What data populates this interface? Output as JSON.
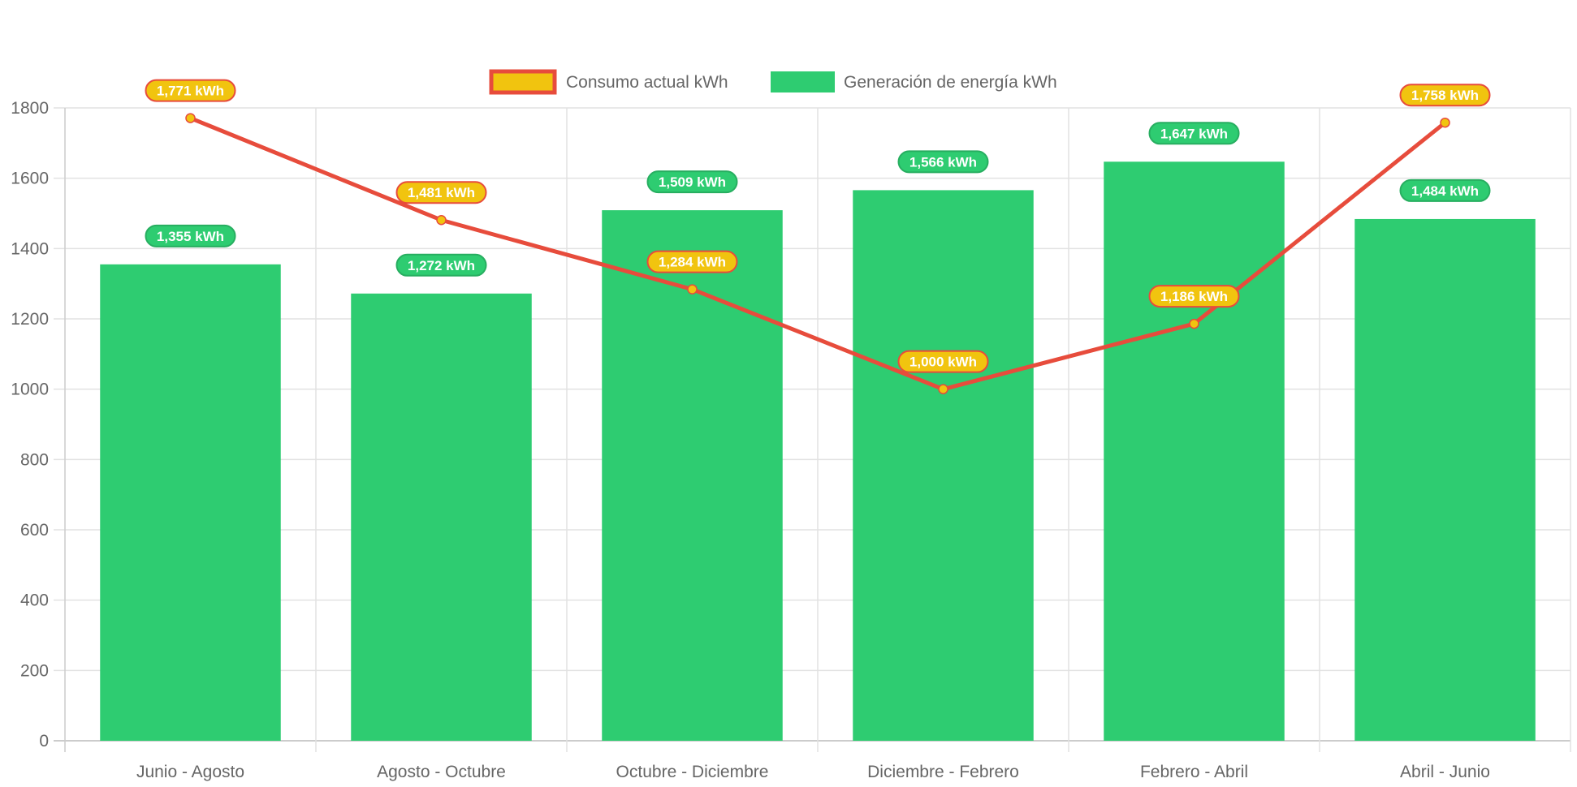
{
  "chart_data": {
    "type": "bar",
    "title": "",
    "xlabel": "",
    "ylabel": "",
    "ylim": [
      0,
      1800
    ],
    "y_ticks": [
      0,
      200,
      400,
      600,
      800,
      1000,
      1200,
      1400,
      1600,
      1800
    ],
    "grid": true,
    "legend_position": "top-center",
    "categories": [
      "Junio - Agosto",
      "Agosto - Octubre",
      "Octubre - Diciembre",
      "Diciembre - Febrero",
      "Febrero - Abril",
      "Abril - Junio"
    ],
    "series": [
      {
        "name": "Consumo actual kWh",
        "type": "line",
        "color": "#E74C3C",
        "point_color": "#F1C40F",
        "values": [
          1771,
          1481,
          1284,
          1000,
          1186,
          1758
        ],
        "labels": [
          "1,771 kWh",
          "1,481 kWh",
          "1,284 kWh",
          "1,000 kWh",
          "1,186 kWh",
          "1,758 kWh"
        ]
      },
      {
        "name": "Generación de energía kWh",
        "type": "bar",
        "color": "#2ECC71",
        "values": [
          1355,
          1272,
          1509,
          1566,
          1647,
          1484
        ],
        "labels": [
          "1,355 kWh",
          "1,272 kWh",
          "1,509 kWh",
          "1,566 kWh",
          "1,647 kWh",
          "1,484 kWh"
        ]
      }
    ]
  }
}
